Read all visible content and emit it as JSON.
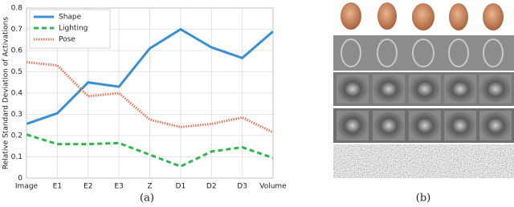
{
  "chart_data": {
    "type": "line",
    "ylabel": "Relative Standard Deviation of Activations",
    "categories": [
      "Image",
      "E1",
      "E2",
      "E3",
      "Z",
      "D1",
      "D2",
      "D3",
      "Volume"
    ],
    "series": [
      {
        "name": "Shape",
        "color": "#3a8fd2",
        "linestyle": "solid",
        "values": [
          0.255,
          0.305,
          0.45,
          0.43,
          0.61,
          0.7,
          0.615,
          0.565,
          0.69
        ]
      },
      {
        "name": "Lighting",
        "color": "#2db84c",
        "linestyle": "dashed",
        "values": [
          0.205,
          0.16,
          0.16,
          0.165,
          0.11,
          0.055,
          0.125,
          0.145,
          0.095
        ]
      },
      {
        "name": "Pose",
        "color": "#e8775c",
        "linestyle": "dotted",
        "values": [
          0.545,
          0.53,
          0.385,
          0.4,
          0.275,
          0.24,
          0.255,
          0.285,
          0.215
        ]
      }
    ],
    "ylim": [
      0,
      0.8
    ],
    "yticks": [
      0,
      0.1,
      0.2,
      0.3,
      0.4,
      0.5,
      0.6,
      0.7,
      0.8
    ],
    "grid": true,
    "legend": "upper left"
  },
  "captions": [
    "(a)",
    "(b)"
  ]
}
